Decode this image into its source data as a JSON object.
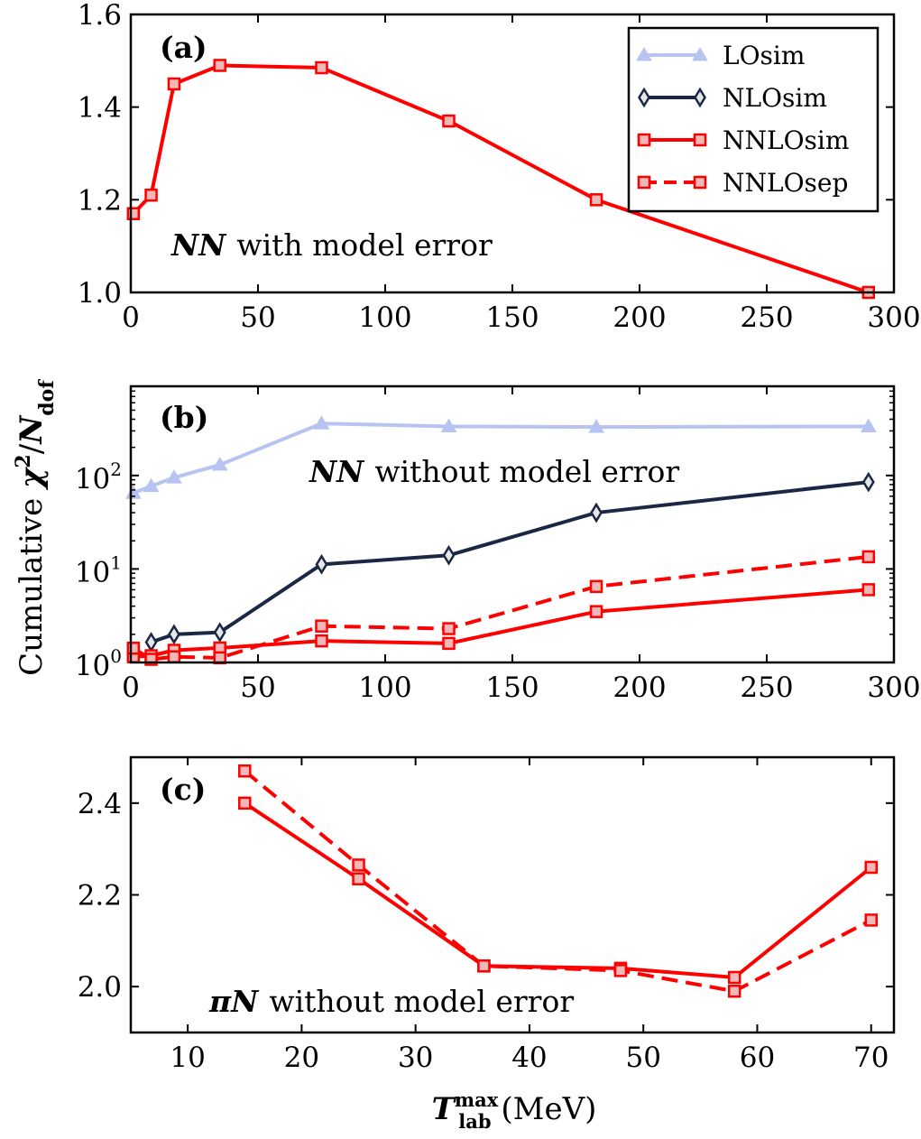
{
  "chart_data": [
    {
      "id": "a",
      "type": "line",
      "panel_label": "(a)",
      "annotation": "with model error",
      "annotation_symbol": "NN",
      "yscale": "linear",
      "xlim": [
        0,
        300
      ],
      "ylim": [
        1.0,
        1.6
      ],
      "xticks": [
        0,
        50,
        100,
        150,
        200,
        250,
        300
      ],
      "yticks": [
        1.0,
        1.2,
        1.4,
        1.6
      ],
      "xtick_labels": [
        "0",
        "50",
        "100",
        "150",
        "200",
        "250",
        "300"
      ],
      "ytick_labels": [
        "1.0",
        "1.2",
        "1.4",
        "1.6"
      ],
      "series": [
        {
          "name": "NNLOsim",
          "style": "solid",
          "marker": "square",
          "color": "#ff0000",
          "x": [
            1,
            8,
            17,
            35,
            75,
            125,
            183,
            290
          ],
          "y": [
            1.17,
            1.21,
            1.45,
            1.49,
            1.485,
            1.37,
            1.2,
            1.0
          ]
        }
      ],
      "legend": {
        "position": "top-right",
        "entries": [
          {
            "label": "LOsim",
            "marker": "triangle",
            "style": "solid",
            "color": "#b7c3f0"
          },
          {
            "label": "NLOsim",
            "marker": "diamond",
            "style": "solid",
            "color": "#1b2845"
          },
          {
            "label": "NNLOsim",
            "marker": "square",
            "style": "solid",
            "color": "#ff0000"
          },
          {
            "label": "NNLOsep",
            "marker": "square",
            "style": "dashed",
            "color": "#ff0000"
          }
        ]
      }
    },
    {
      "id": "b",
      "type": "line",
      "panel_label": "(b)",
      "annotation": "without model error",
      "annotation_symbol": "NN",
      "yscale": "log",
      "xlim": [
        0,
        300
      ],
      "ylim": [
        1,
        900
      ],
      "xticks": [
        0,
        50,
        100,
        150,
        200,
        250,
        300
      ],
      "xtick_labels": [
        "0",
        "50",
        "100",
        "150",
        "200",
        "250",
        "300"
      ],
      "yticks": [
        1,
        10,
        100
      ],
      "ytick_labels": [
        {
          "base": "10",
          "exp": "0"
        },
        {
          "base": "10",
          "exp": "1"
        },
        {
          "base": "10",
          "exp": "2"
        }
      ],
      "series": [
        {
          "name": "LOsim",
          "style": "solid",
          "marker": "triangle",
          "color": "#b7c3f0",
          "x": [
            1,
            8,
            17,
            35,
            75,
            125,
            183,
            290
          ],
          "y": [
            65,
            77,
            95,
            130,
            360,
            335,
            330,
            335
          ]
        },
        {
          "name": "NLOsim",
          "style": "solid",
          "marker": "diamond",
          "color": "#1b2845",
          "x": [
            8,
            17,
            35,
            75,
            125,
            183,
            290
          ],
          "y": [
            1.65,
            2.0,
            2.1,
            11.2,
            14,
            40,
            85
          ]
        },
        {
          "name": "NNLOsim",
          "style": "solid",
          "marker": "square",
          "color": "#ff0000",
          "x": [
            1,
            8,
            17,
            35,
            75,
            125,
            183,
            290
          ],
          "y": [
            1.15,
            1.18,
            1.35,
            1.43,
            1.7,
            1.6,
            3.5,
            6.0
          ]
        },
        {
          "name": "NNLOsep",
          "style": "dashed",
          "marker": "square",
          "color": "#ff0000",
          "x": [
            1,
            8,
            17,
            35,
            75,
            125,
            183,
            290
          ],
          "y": [
            1.42,
            1.08,
            1.15,
            1.12,
            2.45,
            2.3,
            6.5,
            13.5
          ]
        }
      ]
    },
    {
      "id": "c",
      "type": "line",
      "panel_label": "(c)",
      "annotation": "without model error",
      "annotation_symbol": "πN",
      "yscale": "linear",
      "xlim": [
        5,
        72
      ],
      "ylim": [
        1.9,
        2.5
      ],
      "xticks": [
        10,
        20,
        30,
        40,
        50,
        60,
        70
      ],
      "xtick_labels": [
        "10",
        "20",
        "30",
        "40",
        "50",
        "60",
        "70"
      ],
      "yticks": [
        2.0,
        2.2,
        2.4
      ],
      "ytick_labels": [
        "2.0",
        "2.2",
        "2.4"
      ],
      "series": [
        {
          "name": "NNLOsim",
          "style": "solid",
          "marker": "square",
          "color": "#ff0000",
          "x": [
            15,
            25,
            36,
            48,
            58,
            70
          ],
          "y": [
            2.4,
            2.235,
            2.045,
            2.04,
            2.02,
            2.26
          ]
        },
        {
          "name": "NNLOsep",
          "style": "dashed",
          "marker": "square",
          "color": "#ff0000",
          "x": [
            15,
            25,
            36,
            48,
            58,
            70
          ],
          "y": [
            2.47,
            2.265,
            2.045,
            2.035,
            1.99,
            2.145
          ]
        }
      ]
    }
  ],
  "ylabel": {
    "prefix": "Cumulative ",
    "chi": "χ",
    "chi_exp": "2",
    "slash": "/",
    "N": "N",
    "N_sub": "dof"
  },
  "xlabel": {
    "T": "T",
    "T_sup": "max",
    "T_sub": "lab",
    "unit": " (MeV)"
  }
}
